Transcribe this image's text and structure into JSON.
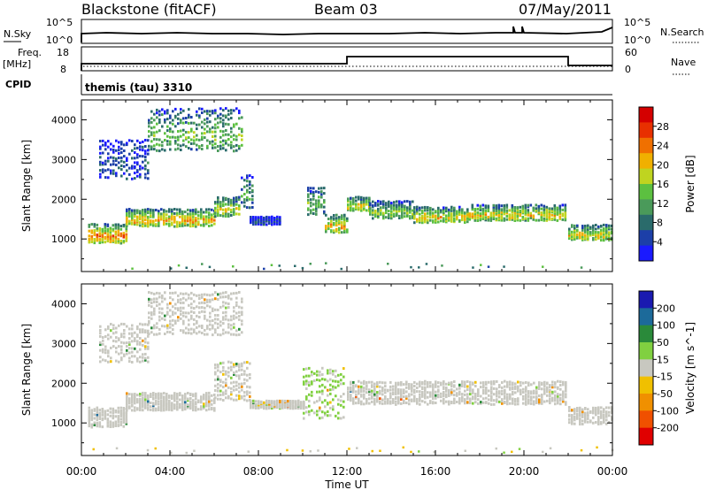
{
  "header": {
    "station": "Blackstone (fitACF)",
    "beam": "Beam 03",
    "date": "07/May/2011"
  },
  "top_panels": {
    "nsky_label": "N.Sky",
    "nsearch_label": "N.Search",
    "noise_ticks": [
      "10^5",
      "10^0"
    ],
    "freq_label": "Freq.",
    "freq_unit": "[MHz]",
    "freq_ticks": [
      "18",
      "8"
    ],
    "nave_label": "Nave",
    "nave_ticks": [
      "60",
      "0"
    ],
    "cpid_label": "CPID",
    "cpid_value": "themis (tau) 3310"
  },
  "chart_data": [
    {
      "type": "heatmap",
      "title": "",
      "xlabel": "Time UT",
      "ylabel": "Slant Range [km]",
      "x_ticks": [
        "00:00",
        "04:00",
        "08:00",
        "12:00",
        "16:00",
        "20:00",
        "00:00"
      ],
      "x_range_hours": [
        0,
        24
      ],
      "y_ticks": [
        1000,
        2000,
        3000,
        4000
      ],
      "ylim": [
        180,
        4500
      ],
      "colorbar": {
        "label": "Power [dB]",
        "ticks": [
          "28",
          "24",
          "20",
          "16",
          "12",
          "8",
          "4"
        ],
        "range": [
          0,
          32
        ],
        "colors": [
          "#1a1aff",
          "#1c3fa8",
          "#2a6b6b",
          "#4a9a5a",
          "#5cc040",
          "#bfd420",
          "#f0b000",
          "#f07000",
          "#e83000",
          "#d40000"
        ]
      },
      "bands": [
        {
          "t0": 0.3,
          "t1": 2.0,
          "r0": 880,
          "r1": 1380,
          "value": 24
        },
        {
          "t0": 2.0,
          "t1": 6.0,
          "r0": 1300,
          "r1": 1750,
          "value": 22
        },
        {
          "t0": 6.0,
          "t1": 7.2,
          "r0": 1550,
          "r1": 2050,
          "value": 18
        },
        {
          "t0": 7.2,
          "t1": 7.8,
          "r0": 1750,
          "r1": 2650,
          "value": 12
        },
        {
          "t0": 3.0,
          "t1": 7.3,
          "r0": 3200,
          "r1": 4300,
          "value": 14
        },
        {
          "t0": 0.8,
          "t1": 3.0,
          "r0": 2500,
          "r1": 3500,
          "value": 6
        },
        {
          "t0": 7.6,
          "t1": 9.0,
          "r0": 1350,
          "r1": 1550,
          "value": 5
        },
        {
          "t0": 10.2,
          "t1": 11.0,
          "r0": 1600,
          "r1": 2300,
          "value": 14
        },
        {
          "t0": 11.0,
          "t1": 12.0,
          "r0": 1150,
          "r1": 1600,
          "value": 22
        },
        {
          "t0": 12.0,
          "t1": 13.0,
          "r0": 1700,
          "r1": 2050,
          "value": 20
        },
        {
          "t0": 13.0,
          "t1": 15.0,
          "r0": 1500,
          "r1": 1950,
          "value": 16
        },
        {
          "t0": 15.0,
          "t1": 17.5,
          "r0": 1400,
          "r1": 1800,
          "value": 20
        },
        {
          "t0": 17.5,
          "t1": 21.9,
          "r0": 1450,
          "r1": 1850,
          "value": 20
        },
        {
          "t0": 22.0,
          "t1": 24.0,
          "r0": 950,
          "r1": 1350,
          "value": 20
        }
      ]
    },
    {
      "type": "heatmap",
      "title": "",
      "xlabel": "Time UT",
      "ylabel": "Slant Range [km]",
      "x_ticks": [
        "00:00",
        "04:00",
        "08:00",
        "12:00",
        "16:00",
        "20:00",
        "00:00"
      ],
      "x_range_hours": [
        0,
        24
      ],
      "y_ticks": [
        1000,
        2000,
        3000,
        4000
      ],
      "ylim": [
        180,
        4500
      ],
      "colorbar": {
        "label": "Velocity [m s^-1]",
        "ticks": [
          "200",
          "100",
          "50",
          "15",
          "-15",
          "-50",
          "-100",
          "-200"
        ],
        "range": [
          -250,
          250
        ],
        "colors": [
          "#e00000",
          "#f05000",
          "#f09000",
          "#f0c000",
          "#c8c8c0",
          "#80d040",
          "#2a8a3a",
          "#1c6a9a",
          "#1a1ab0"
        ]
      },
      "bands": [
        {
          "t0": 0.3,
          "t1": 2.0,
          "r0": 880,
          "r1": 1380,
          "value": 0
        },
        {
          "t0": 2.0,
          "t1": 6.0,
          "r0": 1300,
          "r1": 1750,
          "value": 0
        },
        {
          "t0": 6.0,
          "t1": 7.6,
          "r0": 1550,
          "r1": 2550,
          "value": 0
        },
        {
          "t0": 3.0,
          "t1": 7.3,
          "r0": 3200,
          "r1": 4300,
          "value": 0
        },
        {
          "t0": 0.8,
          "t1": 3.0,
          "r0": 2500,
          "r1": 3500,
          "value": 0
        },
        {
          "t0": 7.6,
          "t1": 10.0,
          "r0": 1350,
          "r1": 1550,
          "value": 0
        },
        {
          "t0": 10.0,
          "t1": 11.8,
          "r0": 1100,
          "r1": 2400,
          "value": 30
        },
        {
          "t0": 12.0,
          "t1": 21.9,
          "r0": 1450,
          "r1": 2050,
          "value": 0
        },
        {
          "t0": 22.0,
          "t1": 24.0,
          "r0": 950,
          "r1": 1400,
          "value": 0
        }
      ]
    }
  ]
}
